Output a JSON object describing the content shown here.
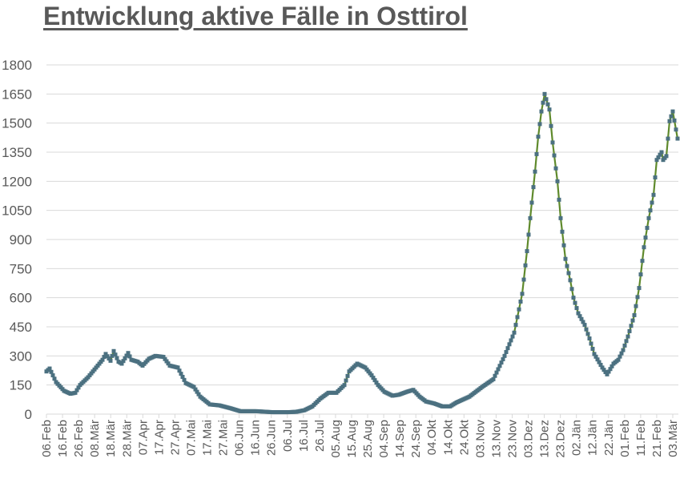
{
  "title": "Entwicklung aktive Fälle in Osttirol",
  "colors": {
    "title": "#595959",
    "line": "#5f8a2c",
    "marker": "#4b7080",
    "grid": "#d9d9d9",
    "tick_text": "#595959"
  },
  "chart_data": {
    "type": "line",
    "title": "Entwicklung aktive Fälle in Osttirol",
    "xlabel": "",
    "ylabel": "",
    "ylim": [
      0,
      1800
    ],
    "yticks": [
      0,
      150,
      300,
      450,
      600,
      750,
      900,
      1050,
      1200,
      1350,
      1500,
      1650,
      1800
    ],
    "grid": true,
    "legend": "none",
    "xtick_labels": [
      "06.Feb",
      "16.Feb",
      "26.Feb",
      "08.Mär",
      "18.Mär",
      "28.Mär",
      "07.Apr",
      "17.Apr",
      "27.Apr",
      "07.Mai",
      "17.Mai",
      "27.Mai",
      "06.Jun",
      "16.Jun",
      "26.Jun",
      "06.Jul",
      "16.Jul",
      "26.Jul",
      "05.Aug",
      "15.Aug",
      "25.Aug",
      "04.Sep",
      "14.Sep",
      "24.Sep",
      "04.Okt",
      "14.Okt",
      "24.Okt",
      "03.Nov",
      "13.Nov",
      "23.Nov",
      "03.Dez",
      "13.Dez",
      "23.Dez",
      "02.Jän",
      "12.Jän",
      "22.Jän",
      "01.Feb",
      "11.Feb",
      "21.Feb",
      "03.Mär"
    ],
    "series": [
      {
        "name": "Aktive Fälle",
        "day_offset_from_06Feb": [
          0,
          2,
          6,
          11,
          15,
          18,
          21,
          26,
          31,
          35,
          37,
          40,
          42,
          45,
          47,
          51,
          53,
          57,
          60,
          64,
          68,
          73,
          77,
          82,
          87,
          92,
          96,
          102,
          108,
          115,
          121,
          131,
          141,
          151,
          161,
          156,
          166,
          171,
          176,
          181,
          186,
          189,
          194,
          199,
          203,
          207,
          211,
          216,
          220,
          225,
          229,
          233,
          237,
          242,
          247,
          252,
          256,
          264,
          272,
          279,
          286,
          292,
          297,
          300,
          302,
          305,
          307,
          309,
          311,
          314,
          316,
          319,
          321,
          324,
          327,
          329,
          332,
          336,
          339,
          342,
          347,
          350,
          354,
          357,
          360,
          363,
          367,
          370,
          373,
          376,
          379,
          381,
          384,
          385,
          387,
          389,
          391,
          394
        ],
        "values": [
          220,
          235,
          165,
          120,
          105,
          110,
          150,
          190,
          240,
          280,
          310,
          275,
          325,
          270,
          260,
          315,
          280,
          270,
          250,
          285,
          300,
          295,
          250,
          240,
          160,
          140,
          90,
          50,
          45,
          30,
          15,
          15,
          10,
          10,
          20,
          12,
          40,
          80,
          110,
          110,
          150,
          220,
          260,
          240,
          200,
          150,
          115,
          95,
          100,
          115,
          125,
          90,
          65,
          55,
          40,
          40,
          60,
          90,
          140,
          180,
          300,
          420,
          620,
          840,
          1010,
          1250,
          1430,
          1560,
          1650,
          1570,
          1400,
          1200,
          1010,
          800,
          690,
          600,
          520,
          460,
          390,
          310,
          240,
          205,
          260,
          280,
          330,
          400,
          510,
          650,
          860,
          1010,
          1130,
          1310,
          1350,
          1310,
          1330,
          1510,
          1560,
          1420
        ]
      }
    ]
  }
}
